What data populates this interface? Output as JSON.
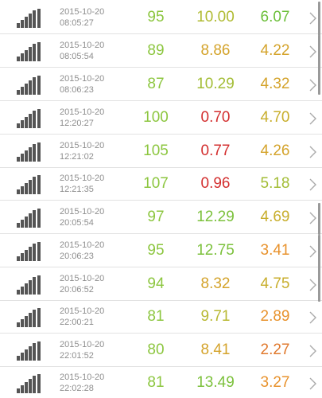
{
  "rows": [
    {
      "date": "2015-10-20",
      "time": "08:05:27",
      "v1": "95",
      "v2": "10.00",
      "v3": "6.07",
      "c1": "#8cc63f",
      "c2": "#b0bb33",
      "c3": "#6cbf3a"
    },
    {
      "date": "2015-10-20",
      "time": "08:05:54",
      "v1": "89",
      "v2": "8.86",
      "v3": "4.22",
      "c1": "#8cc63f",
      "c2": "#d4a32b",
      "c3": "#d4a32b"
    },
    {
      "date": "2015-10-20",
      "time": "08:06:23",
      "v1": "87",
      "v2": "10.29",
      "v3": "4.32",
      "c1": "#8cc63f",
      "c2": "#a3bd35",
      "c3": "#d4a32b"
    },
    {
      "date": "2015-10-20",
      "time": "12:20:27",
      "v1": "100",
      "v2": "0.70",
      "v3": "4.70",
      "c1": "#8cc63f",
      "c2": "#d32f2f",
      "c3": "#c8ae2c"
    },
    {
      "date": "2015-10-20",
      "time": "12:21:02",
      "v1": "105",
      "v2": "0.77",
      "v3": "4.26",
      "c1": "#8cc63f",
      "c2": "#d32f2f",
      "c3": "#d4a32b"
    },
    {
      "date": "2015-10-20",
      "time": "12:21:35",
      "v1": "107",
      "v2": "0.96",
      "v3": "5.18",
      "c1": "#8cc63f",
      "c2": "#d32f2f",
      "c3": "#a3bd35"
    },
    {
      "date": "2015-10-20",
      "time": "20:05:54",
      "v1": "97",
      "v2": "12.29",
      "v3": "4.69",
      "c1": "#8cc63f",
      "c2": "#7cc13c",
      "c3": "#c8ae2c"
    },
    {
      "date": "2015-10-20",
      "time": "20:06:23",
      "v1": "95",
      "v2": "12.75",
      "v3": "3.41",
      "c1": "#8cc63f",
      "c2": "#7cc13c",
      "c3": "#e8922c"
    },
    {
      "date": "2015-10-20",
      "time": "20:06:52",
      "v1": "94",
      "v2": "8.32",
      "v3": "4.75",
      "c1": "#8cc63f",
      "c2": "#d4a32b",
      "c3": "#c8ae2c"
    },
    {
      "date": "2015-10-20",
      "time": "22:00:21",
      "v1": "81",
      "v2": "9.71",
      "v3": "2.89",
      "c1": "#8cc63f",
      "c2": "#b8b832",
      "c3": "#e8922c"
    },
    {
      "date": "2015-10-20",
      "time": "22:01:52",
      "v1": "80",
      "v2": "8.41",
      "v3": "2.27",
      "c1": "#8cc63f",
      "c2": "#d4a32b",
      "c3": "#e0782c"
    },
    {
      "date": "2015-10-20",
      "time": "22:02:28",
      "v1": "81",
      "v2": "13.49",
      "v3": "3.27",
      "c1": "#8cc63f",
      "c2": "#7cc13c",
      "c3": "#e8922c"
    }
  ],
  "icons": {
    "row_leading": "signal-strength-icon",
    "row_trailing": "chevron-right-icon"
  },
  "colors": {
    "icon": "#555555",
    "timestamp": "#8e8e8e",
    "divider": "#e2e2e2",
    "chevron": "#aaaaaa",
    "scroll_indicator": "#9a9a9a"
  }
}
